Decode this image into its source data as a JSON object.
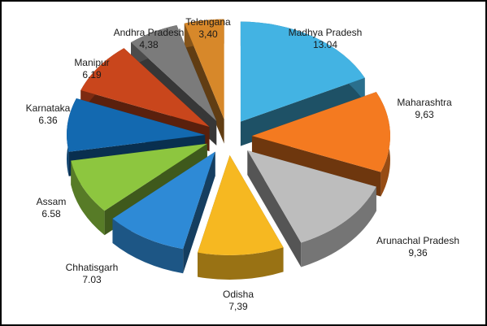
{
  "chart_data": {
    "type": "pie",
    "style": "exploded 3D pie",
    "title": "",
    "legend": "none",
    "slices": [
      {
        "label": "Madhya Pradesh",
        "value_text": "13.04",
        "value": 13.04,
        "color": "#43b3e3"
      },
      {
        "label": "Maharashtra",
        "value_text": "9,63",
        "value": 9.63,
        "color": "#f47a20"
      },
      {
        "label": "Arunachal Pradesh",
        "value_text": "9,36",
        "value": 9.36,
        "color": "#bdbdbd"
      },
      {
        "label": "Odisha",
        "value_text": "7,39",
        "value": 7.39,
        "color": "#f6b821"
      },
      {
        "label": "Chhatisgarh",
        "value_text": "7.03",
        "value": 7.03,
        "color": "#2e8ad6"
      },
      {
        "label": "Assam",
        "value_text": "6.58",
        "value": 6.58,
        "color": "#8dc63f"
      },
      {
        "label": "Karnataka",
        "value_text": "6.36",
        "value": 6.36,
        "color": "#1369b0"
      },
      {
        "label": "Manipur",
        "value_text": "6.19",
        "value": 6.19,
        "color": "#c9461c"
      },
      {
        "label": "Andhra Pradesh",
        "value_text": "4,38",
        "value": 4.38,
        "color": "#7b7b7b"
      },
      {
        "label": "Telengana",
        "value_text": "3,40",
        "value": 3.4,
        "color": "#d7882a"
      }
    ]
  }
}
